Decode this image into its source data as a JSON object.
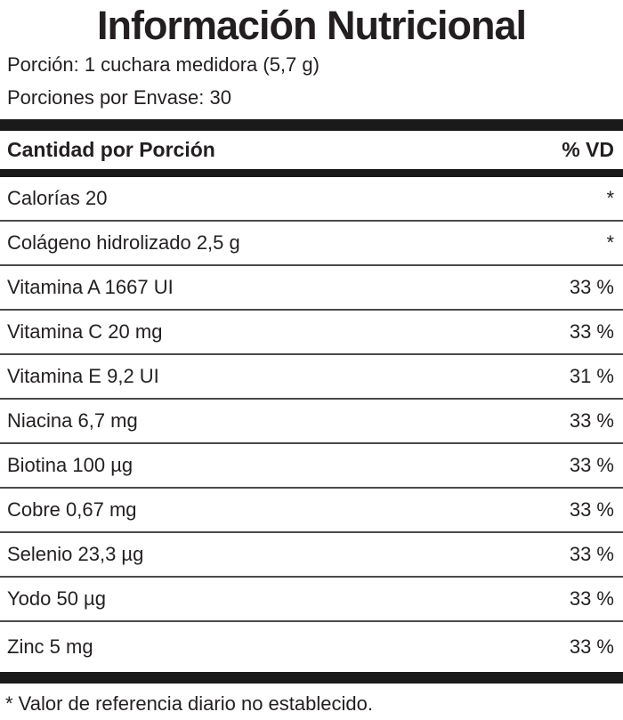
{
  "label": {
    "title": "Información Nutricional",
    "serving": {
      "line1": "Porción: 1 cuchara medidora (5,7 g)",
      "line2": "Porciones por Envase: 30"
    },
    "header": {
      "left": "Cantidad por Porción",
      "right": "% VD"
    },
    "rows": [
      {
        "name": "Calorías 20",
        "vd": "*"
      },
      {
        "name": "Colágeno hidrolizado 2,5 g",
        "vd": "*"
      },
      {
        "name": "Vitamina A 1667 UI",
        "vd": "33 %"
      },
      {
        "name": "Vitamina C 20 mg",
        "vd": "33 %"
      },
      {
        "name": "Vitamina E 9,2 UI",
        "vd": "31 %"
      },
      {
        "name": "Niacina 6,7 mg",
        "vd": "33 %"
      },
      {
        "name": "Biotina 100 µg",
        "vd": "33 %"
      },
      {
        "name": "Cobre 0,67 mg",
        "vd": "33 %"
      },
      {
        "name": "Selenio 23,3 µg",
        "vd": "33 %"
      },
      {
        "name": "Yodo 50 µg",
        "vd": "33 %"
      },
      {
        "name": "Zinc 5 mg",
        "vd": "33 %"
      }
    ],
    "footnote": "* Valor de referencia diario no establecido.",
    "colors": {
      "text": "#231f20",
      "bar": "#1a1a1a",
      "separator": "#4a4a49"
    }
  }
}
